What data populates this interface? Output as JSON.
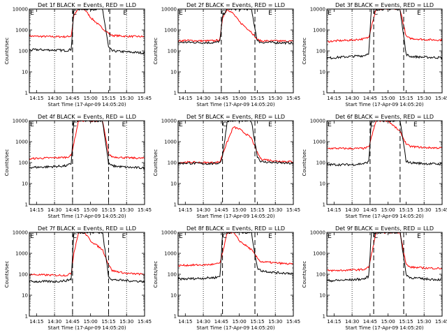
{
  "chart_data": {
    "type": "line",
    "yscale": "log",
    "ylim": [
      1,
      10000
    ],
    "ylabel": "Counts/sec",
    "xlabel": "Start Time (17-Apr-09 14:05:20)",
    "xlim": [
      "14:09",
      "15:45"
    ],
    "x_ticks": [
      "14:15",
      "14:30",
      "14:45",
      "15:00",
      "15:15",
      "15:30",
      "15:45"
    ],
    "y_ticks": [
      {
        "value": 1,
        "label": "1"
      },
      {
        "value": 10,
        "label": "10"
      },
      {
        "value": 100,
        "label": "100"
      },
      {
        "value": 1000,
        "label": "1000"
      },
      {
        "value": 10000,
        "label": "10000"
      }
    ],
    "series_colors": {
      "events": "#000000",
      "lld": "#ff0000"
    },
    "marker_labels": [
      "E",
      "C",
      "E"
    ],
    "dotted_lines": [
      "14:30",
      "15:30"
    ],
    "time_x": [
      "14:09",
      "14:15",
      "14:30",
      "14:40",
      "14:44",
      "14:46",
      "14:50",
      "14:55",
      "15:00",
      "15:10",
      "15:15",
      "15:18",
      "15:30",
      "15:45"
    ],
    "panels": [
      {
        "title": "Det 1f BLACK = Events, RED = LLD",
        "dashed": [
          "14:45",
          "15:16"
        ],
        "lld": [
          520,
          500,
          480,
          480,
          520,
          5000,
          10000,
          10000,
          4000,
          1200,
          700,
          550,
          500,
          480
        ],
        "events": [
          110,
          115,
          110,
          105,
          120,
          10000,
          10000,
          10000,
          10000,
          10000,
          150,
          100,
          90,
          80
        ]
      },
      {
        "title": "Det 2f BLACK = Events, RED = LLD",
        "dashed": [
          "14:45",
          "15:13"
        ],
        "lld": [
          300,
          320,
          300,
          310,
          350,
          4000,
          10000,
          6000,
          2500,
          800,
          350,
          300,
          300,
          290
        ],
        "events": [
          250,
          260,
          250,
          250,
          300,
          5000,
          10000,
          10000,
          10000,
          10000,
          300,
          260,
          250,
          240
        ]
      },
      {
        "title": "Det 3f BLACK = Events, RED = LLD",
        "dashed": [
          "14:48",
          "15:13"
        ],
        "lld": [
          280,
          300,
          330,
          380,
          450,
          1500,
          10000,
          10000,
          10000,
          10000,
          500,
          400,
          350,
          330
        ],
        "events": [
          45,
          48,
          55,
          60,
          80,
          10000,
          10000,
          10000,
          10000,
          10000,
          70,
          55,
          50,
          48
        ]
      },
      {
        "title": "Det 4f BLACK = Events, RED = LLD",
        "dashed": [
          "14:45",
          "15:15"
        ],
        "lld": [
          150,
          160,
          170,
          180,
          220,
          800,
          10000,
          10000,
          10000,
          10000,
          250,
          190,
          170,
          160
        ],
        "events": [
          60,
          60,
          65,
          70,
          90,
          10000,
          10000,
          10000,
          10000,
          10000,
          90,
          70,
          60,
          55
        ]
      },
      {
        "title": "Det 5f BLACK = Events, RED = LLD",
        "dashed": [
          "14:46",
          "15:13"
        ],
        "lld": [
          100,
          105,
          100,
          100,
          110,
          250,
          1000,
          5000,
          4000,
          1500,
          300,
          150,
          120,
          110
        ],
        "events": [
          90,
          95,
          90,
          90,
          100,
          200,
          10000,
          10000,
          10000,
          10000,
          200,
          110,
          100,
          90
        ]
      },
      {
        "title": "Det 6f BLACK = Events, RED = LLD",
        "dashed": [
          "14:45",
          "15:10"
        ],
        "lld": [
          480,
          480,
          470,
          480,
          550,
          1500,
          10000,
          10000,
          10000,
          3000,
          800,
          600,
          520,
          500
        ],
        "events": [
          80,
          80,
          80,
          90,
          110,
          10000,
          10000,
          10000,
          10000,
          10000,
          120,
          100,
          90,
          85
        ]
      },
      {
        "title": "Det 7f BLACK = Events, RED = LLD",
        "dashed": [
          "14:45",
          "15:15"
        ],
        "lld": [
          100,
          95,
          90,
          90,
          110,
          1000,
          10000,
          10000,
          4000,
          1500,
          300,
          150,
          110,
          100
        ],
        "events": [
          45,
          45,
          45,
          50,
          60,
          10000,
          10000,
          10000,
          10000,
          10000,
          80,
          55,
          50,
          45
        ]
      },
      {
        "title": "Det 8f BLACK = Events, RED = LLD",
        "dashed": [
          "14:46",
          "15:13"
        ],
        "lld": [
          260,
          270,
          280,
          300,
          350,
          1000,
          10000,
          10000,
          4000,
          1500,
          600,
          400,
          350,
          300
        ],
        "events": [
          60,
          60,
          65,
          70,
          80,
          10000,
          10000,
          10000,
          10000,
          10000,
          200,
          150,
          120,
          110
        ]
      },
      {
        "title": "Det 9f BLACK = Events, RED = LLD",
        "dashed": [
          "14:48",
          "15:13"
        ],
        "lld": [
          150,
          150,
          160,
          170,
          220,
          800,
          10000,
          10000,
          10000,
          10000,
          300,
          220,
          200,
          190
        ],
        "events": [
          50,
          50,
          55,
          60,
          80,
          10000,
          10000,
          10000,
          10000,
          10000,
          100,
          70,
          60,
          55
        ]
      }
    ]
  }
}
